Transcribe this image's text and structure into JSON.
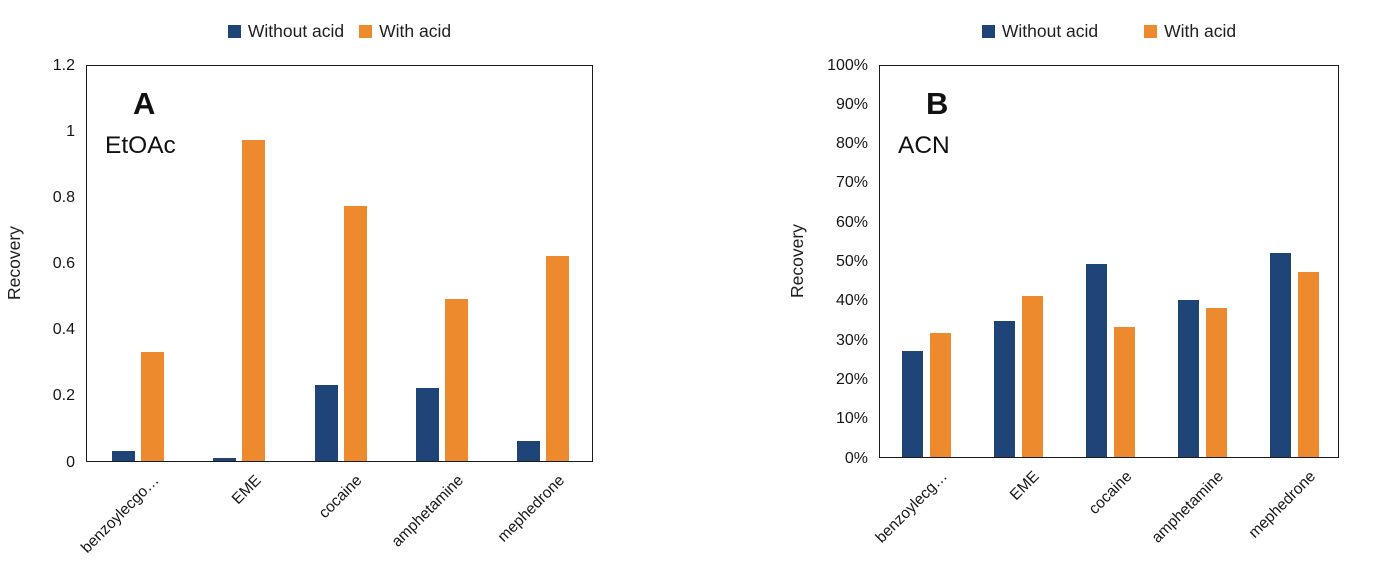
{
  "figure": {
    "colors": {
      "without_acid": "#1F4477",
      "with_acid": "#ED8A2D",
      "axis": "#1b1b1b"
    },
    "panels": [
      {
        "letter": "A",
        "solvent": "EtOAc",
        "y_axis_label": "Recovery"
      },
      {
        "letter": "B",
        "solvent": "ACN",
        "y_axis_label": "Recovery"
      }
    ]
  },
  "chart_data": [
    {
      "type": "bar",
      "panel": "A",
      "annotation": "EtOAc",
      "categories": [
        "benzoylecgo…",
        "EME",
        "cocaine",
        "amphetamine",
        "mephedrone"
      ],
      "series": [
        {
          "name": "Without acid",
          "color": "#1F4477",
          "values": [
            0.03,
            0.01,
            0.23,
            0.22,
            0.06
          ]
        },
        {
          "name": "With acid",
          "color": "#ED8A2D",
          "values": [
            0.33,
            0.97,
            0.77,
            0.49,
            0.62
          ]
        }
      ],
      "xlabel": "",
      "ylabel": "Recovery",
      "ylim": [
        0,
        1.2
      ],
      "ytick_labels": [
        "1.2",
        "1",
        "0.8",
        "0.6",
        "0.4",
        "0.2",
        "0"
      ],
      "grid": false,
      "legend_position": "top"
    },
    {
      "type": "bar",
      "panel": "B",
      "annotation": "ACN",
      "categories": [
        "benzoylecg…",
        "EME",
        "cocaine",
        "amphetamine",
        "mephedrone"
      ],
      "series": [
        {
          "name": "Without acid",
          "color": "#1F4477",
          "values": [
            27,
            34.5,
            49,
            40,
            52
          ]
        },
        {
          "name": "With acid",
          "color": "#ED8A2D",
          "values": [
            31.5,
            41,
            33,
            38,
            47
          ]
        }
      ],
      "xlabel": "",
      "ylabel": "Recovery",
      "ylim": [
        0,
        100
      ],
      "ytick_labels": [
        "100%",
        "90%",
        "80%",
        "70%",
        "60%",
        "50%",
        "40%",
        "30%",
        "20%",
        "10%",
        "0%"
      ],
      "grid": false,
      "legend_position": "top",
      "value_unit": "%"
    }
  ]
}
